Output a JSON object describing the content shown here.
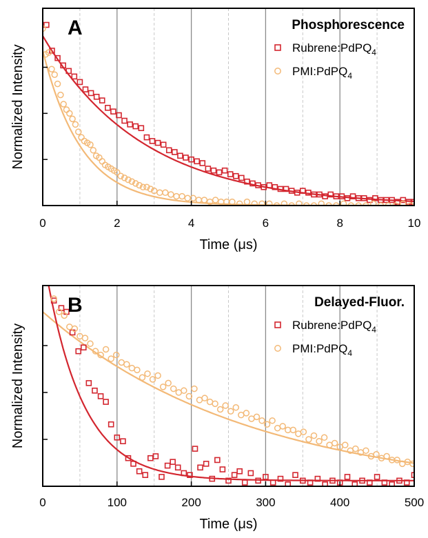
{
  "colors": {
    "rubrene": "#d3262f",
    "pmi": "#f3b977",
    "grid_solid": "#8a8a8a",
    "grid_dashed": "#c8c8c8",
    "axis": "#000000"
  },
  "chart_data": [
    {
      "type": "scatter",
      "panel_label": "A",
      "legend_title": "Phosphorescence",
      "legend_placement": "top-right",
      "xlabel": "Time (μs)",
      "ylabel": "Normalized Intensity",
      "xlim": [
        0,
        10
      ],
      "ylim": [
        0,
        1.07
      ],
      "x_ticks": [
        0,
        2,
        4,
        6,
        8,
        10
      ],
      "x_tick_labels": [
        "0",
        "2",
        "4",
        "6",
        "8",
        "10"
      ],
      "y_ticks": [
        0.25,
        0.5,
        0.75
      ],
      "grid": "vertical: solid at major ticks, dashed at minor ticks",
      "series": [
        {
          "name": "Rubrene:PdPQ₄",
          "label_base": "Rubrene:PdPQ",
          "label_sub": "4",
          "marker": "square",
          "color": "#d3262f",
          "fit": {
            "model": "exponential",
            "y0": 0.92,
            "tau": 2.7
          },
          "x": [
            0.1,
            0.25,
            0.4,
            0.55,
            0.7,
            0.85,
            1.0,
            1.15,
            1.3,
            1.45,
            1.6,
            1.75,
            1.9,
            2.05,
            2.2,
            2.35,
            2.5,
            2.65,
            2.8,
            2.95,
            3.1,
            3.25,
            3.4,
            3.55,
            3.7,
            3.85,
            4.0,
            4.15,
            4.3,
            4.45,
            4.6,
            4.75,
            4.9,
            5.05,
            5.2,
            5.35,
            5.5,
            5.65,
            5.8,
            5.95,
            6.1,
            6.25,
            6.4,
            6.55,
            6.7,
            6.85,
            7.0,
            7.15,
            7.3,
            7.45,
            7.6,
            7.75,
            7.9,
            8.05,
            8.2,
            8.35,
            8.5,
            8.65,
            8.8,
            8.95,
            9.1,
            9.25,
            9.4,
            9.55,
            9.7,
            9.85,
            10.0
          ],
          "y": [
            0.98,
            0.84,
            0.8,
            0.76,
            0.73,
            0.7,
            0.67,
            0.63,
            0.61,
            0.59,
            0.57,
            0.53,
            0.51,
            0.49,
            0.46,
            0.44,
            0.43,
            0.42,
            0.37,
            0.35,
            0.34,
            0.33,
            0.3,
            0.29,
            0.27,
            0.26,
            0.25,
            0.24,
            0.23,
            0.2,
            0.19,
            0.18,
            0.19,
            0.17,
            0.16,
            0.15,
            0.13,
            0.12,
            0.11,
            0.1,
            0.11,
            0.1,
            0.09,
            0.09,
            0.08,
            0.07,
            0.08,
            0.07,
            0.06,
            0.06,
            0.05,
            0.06,
            0.05,
            0.05,
            0.04,
            0.05,
            0.04,
            0.04,
            0.03,
            0.04,
            0.03,
            0.03,
            0.03,
            0.02,
            0.03,
            0.02,
            0.02
          ]
        },
        {
          "name": "PMI:PdPQ₄",
          "label_base": "PMI:PdPQ",
          "label_sub": "4",
          "marker": "circle",
          "color": "#f3b977",
          "fit": {
            "model": "exponential",
            "y0": 0.84,
            "tau": 1.05
          },
          "x": [
            0.0,
            0.08,
            0.16,
            0.24,
            0.32,
            0.4,
            0.48,
            0.56,
            0.64,
            0.72,
            0.8,
            0.88,
            0.96,
            1.04,
            1.12,
            1.2,
            1.28,
            1.36,
            1.44,
            1.52,
            1.6,
            1.68,
            1.76,
            1.84,
            1.92,
            2.0,
            2.1,
            2.2,
            2.3,
            2.4,
            2.5,
            2.6,
            2.7,
            2.8,
            2.9,
            3.0,
            3.15,
            3.3,
            3.45,
            3.6,
            3.75,
            3.9,
            4.05,
            4.2,
            4.35,
            4.5,
            4.65,
            4.8,
            4.95,
            5.1,
            5.3,
            5.5,
            5.7,
            5.9,
            6.1,
            6.3,
            6.5,
            6.7,
            6.9,
            7.1,
            7.3,
            7.5,
            7.7,
            7.9,
            8.1,
            8.3,
            8.5,
            8.7,
            8.9,
            9.1,
            9.3,
            9.5,
            9.7,
            9.9
          ],
          "y": [
            0.96,
            0.82,
            0.83,
            0.74,
            0.71,
            0.66,
            0.6,
            0.55,
            0.52,
            0.5,
            0.47,
            0.44,
            0.4,
            0.37,
            0.35,
            0.34,
            0.33,
            0.3,
            0.27,
            0.26,
            0.24,
            0.22,
            0.21,
            0.2,
            0.19,
            0.18,
            0.16,
            0.15,
            0.14,
            0.13,
            0.12,
            0.11,
            0.1,
            0.1,
            0.09,
            0.08,
            0.07,
            0.07,
            0.06,
            0.05,
            0.05,
            0.04,
            0.04,
            0.03,
            0.03,
            0.02,
            0.03,
            0.02,
            0.02,
            0.02,
            0.01,
            0.02,
            0.01,
            0.01,
            0.01,
            0.0,
            0.01,
            0.0,
            0.01,
            0.0,
            0.0,
            0.01,
            0.0,
            0.0,
            0.01,
            0.0,
            0.0,
            0.0,
            0.01,
            0.0,
            0.0,
            0.0,
            0.01,
            0.0
          ]
        }
      ]
    },
    {
      "type": "scatter",
      "panel_label": "B",
      "legend_title": "Delayed-Fluor.",
      "legend_placement": "top-right",
      "xlabel": "Time (μs)",
      "ylabel": "Normalized Intensity",
      "xlim": [
        0,
        500
      ],
      "ylim": [
        0,
        1.07
      ],
      "x_ticks": [
        0,
        100,
        200,
        300,
        400,
        500
      ],
      "x_tick_labels": [
        "0",
        "100",
        "200",
        "300",
        "400",
        "500"
      ],
      "y_ticks": [
        0.25,
        0.5,
        0.75
      ],
      "grid": "vertical: solid at major ticks, dashed at minor ticks",
      "series": [
        {
          "name": "Rubrene:PdPQ₄",
          "label_base": "Rubrene:PdPQ",
          "label_sub": "4",
          "marker": "square",
          "color": "#d3262f",
          "fit": {
            "model": "exponential",
            "y0": 1.22,
            "tau": 50,
            "offset": 0.03
          },
          "x": [
            15,
            25,
            32,
            40,
            48,
            55,
            62,
            70,
            78,
            85,
            92,
            100,
            108,
            115,
            122,
            130,
            138,
            145,
            152,
            160,
            168,
            175,
            182,
            190,
            198,
            205,
            212,
            220,
            228,
            235,
            242,
            250,
            258,
            265,
            272,
            280,
            290,
            300,
            310,
            320,
            330,
            340,
            350,
            360,
            370,
            380,
            390,
            400,
            410,
            420,
            430,
            440,
            450,
            460,
            470,
            480,
            490,
            500
          ],
          "y": [
            0.99,
            0.95,
            0.93,
            0.82,
            0.72,
            0.74,
            0.55,
            0.51,
            0.48,
            0.45,
            0.33,
            0.26,
            0.24,
            0.15,
            0.12,
            0.08,
            0.06,
            0.15,
            0.16,
            0.05,
            0.11,
            0.13,
            0.1,
            0.07,
            0.06,
            0.2,
            0.1,
            0.12,
            0.04,
            0.14,
            0.09,
            0.03,
            0.06,
            0.08,
            0.02,
            0.07,
            0.03,
            0.05,
            0.02,
            0.04,
            0.01,
            0.06,
            0.03,
            0.02,
            0.04,
            0.01,
            0.03,
            0.02,
            0.05,
            0.01,
            0.03,
            0.02,
            0.05,
            0.02,
            0.01,
            0.03,
            0.02,
            0.06
          ]
        },
        {
          "name": "PMI:PdPQ₄",
          "label_base": "PMI:PdPQ",
          "label_sub": "4",
          "marker": "circle",
          "color": "#f3b977",
          "fit": {
            "model": "exponential",
            "y0": 0.97,
            "tau": 280,
            "offset": -0.04
          },
          "x": [
            15,
            22,
            29,
            36,
            43,
            50,
            57,
            64,
            71,
            78,
            85,
            92,
            99,
            106,
            113,
            120,
            127,
            134,
            141,
            148,
            155,
            162,
            169,
            176,
            183,
            190,
            197,
            204,
            211,
            218,
            225,
            232,
            239,
            246,
            253,
            260,
            267,
            274,
            281,
            288,
            295,
            302,
            309,
            316,
            323,
            330,
            337,
            344,
            351,
            358,
            365,
            372,
            379,
            386,
            393,
            400,
            407,
            414,
            421,
            428,
            435,
            442,
            449,
            456,
            463,
            470,
            477,
            484,
            491,
            498
          ],
          "y": [
            1.0,
            0.93,
            0.91,
            0.85,
            0.84,
            0.8,
            0.79,
            0.76,
            0.72,
            0.7,
            0.73,
            0.68,
            0.7,
            0.66,
            0.65,
            0.63,
            0.62,
            0.58,
            0.6,
            0.57,
            0.59,
            0.53,
            0.55,
            0.52,
            0.5,
            0.51,
            0.48,
            0.52,
            0.46,
            0.47,
            0.45,
            0.44,
            0.41,
            0.43,
            0.4,
            0.42,
            0.38,
            0.39,
            0.36,
            0.37,
            0.35,
            0.33,
            0.35,
            0.31,
            0.32,
            0.3,
            0.3,
            0.28,
            0.29,
            0.25,
            0.27,
            0.24,
            0.26,
            0.22,
            0.23,
            0.21,
            0.22,
            0.19,
            0.2,
            0.18,
            0.19,
            0.16,
            0.17,
            0.15,
            0.16,
            0.14,
            0.14,
            0.12,
            0.13,
            0.12
          ]
        }
      ]
    }
  ]
}
